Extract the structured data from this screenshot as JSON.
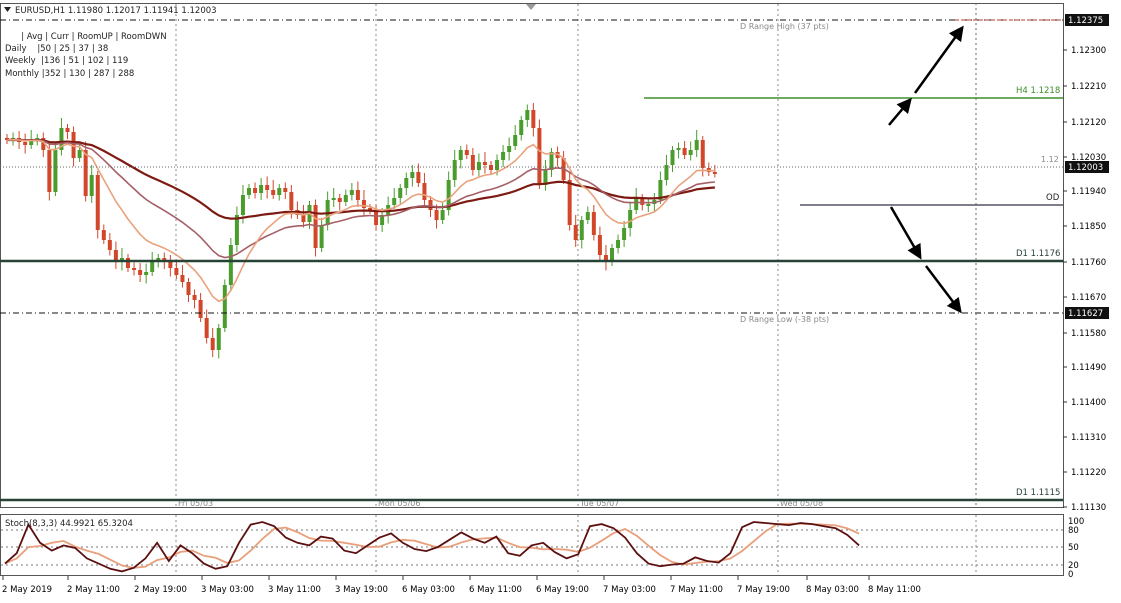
{
  "header": {
    "symbol_line": "EURUSD,H1  1.11980 1.12017 1.11941 1.12003",
    "info_lines": [
      "      | Avg | Curr | RoomUP | RoomDWN",
      "Daily    |50 | 25 | 37 | 38",
      "Weekly  |136 | 51 | 102 | 119",
      "Monthly |352 | 130 | 287 | 288"
    ]
  },
  "price_axis": {
    "ticks": [
      "1.12375",
      "1.12300",
      "1.12210",
      "1.12120",
      "1.12030",
      "1.11940",
      "1.11850",
      "1.11760",
      "1.11670",
      "1.11580",
      "1.11490",
      "1.11400",
      "1.11310",
      "1.11220",
      "1.11130"
    ],
    "current_price": "1.12003",
    "low_tag": "1.11627"
  },
  "levels": {
    "range_high": "D Range High (37 pts)",
    "range_low": "D Range Low (-38 pts)",
    "h4": "H4 1.1218",
    "d1_mid": "D1 1.1176",
    "d1_low": "D1 1.1115",
    "twelve": "1.12",
    "od": "OD"
  },
  "day_separators": [
    "Fri 05/03",
    "Mon 05/06",
    "Tue 05/07",
    "Wed 05/08"
  ],
  "stochastic": {
    "label": "Stoch(8,3,3) 44.9921 65.3204",
    "ticks": [
      "100",
      "80",
      "50",
      "20",
      "0"
    ]
  },
  "time_axis": [
    "2 May 2019",
    "2 May 11:00",
    "2 May 19:00",
    "3 May 03:00",
    "3 May 11:00",
    "3 May 19:00",
    "6 May 03:00",
    "6 May 11:00",
    "6 May 19:00",
    "7 May 03:00",
    "7 May 11:00",
    "7 May 19:00",
    "8 May 03:00",
    "8 May 11:00"
  ],
  "colors": {
    "bull": "#4a9c2d",
    "bear": "#d2462a",
    "ma_fast": "#eaa27d",
    "ma_mid": "#a56067",
    "ma_slow": "#7d1a12",
    "level_green": "#3e8e2a",
    "level_dark": "#274237",
    "od_line": "#555566",
    "stoch_main": "#5c1010",
    "stoch_signal": "#e8a07c"
  }
}
